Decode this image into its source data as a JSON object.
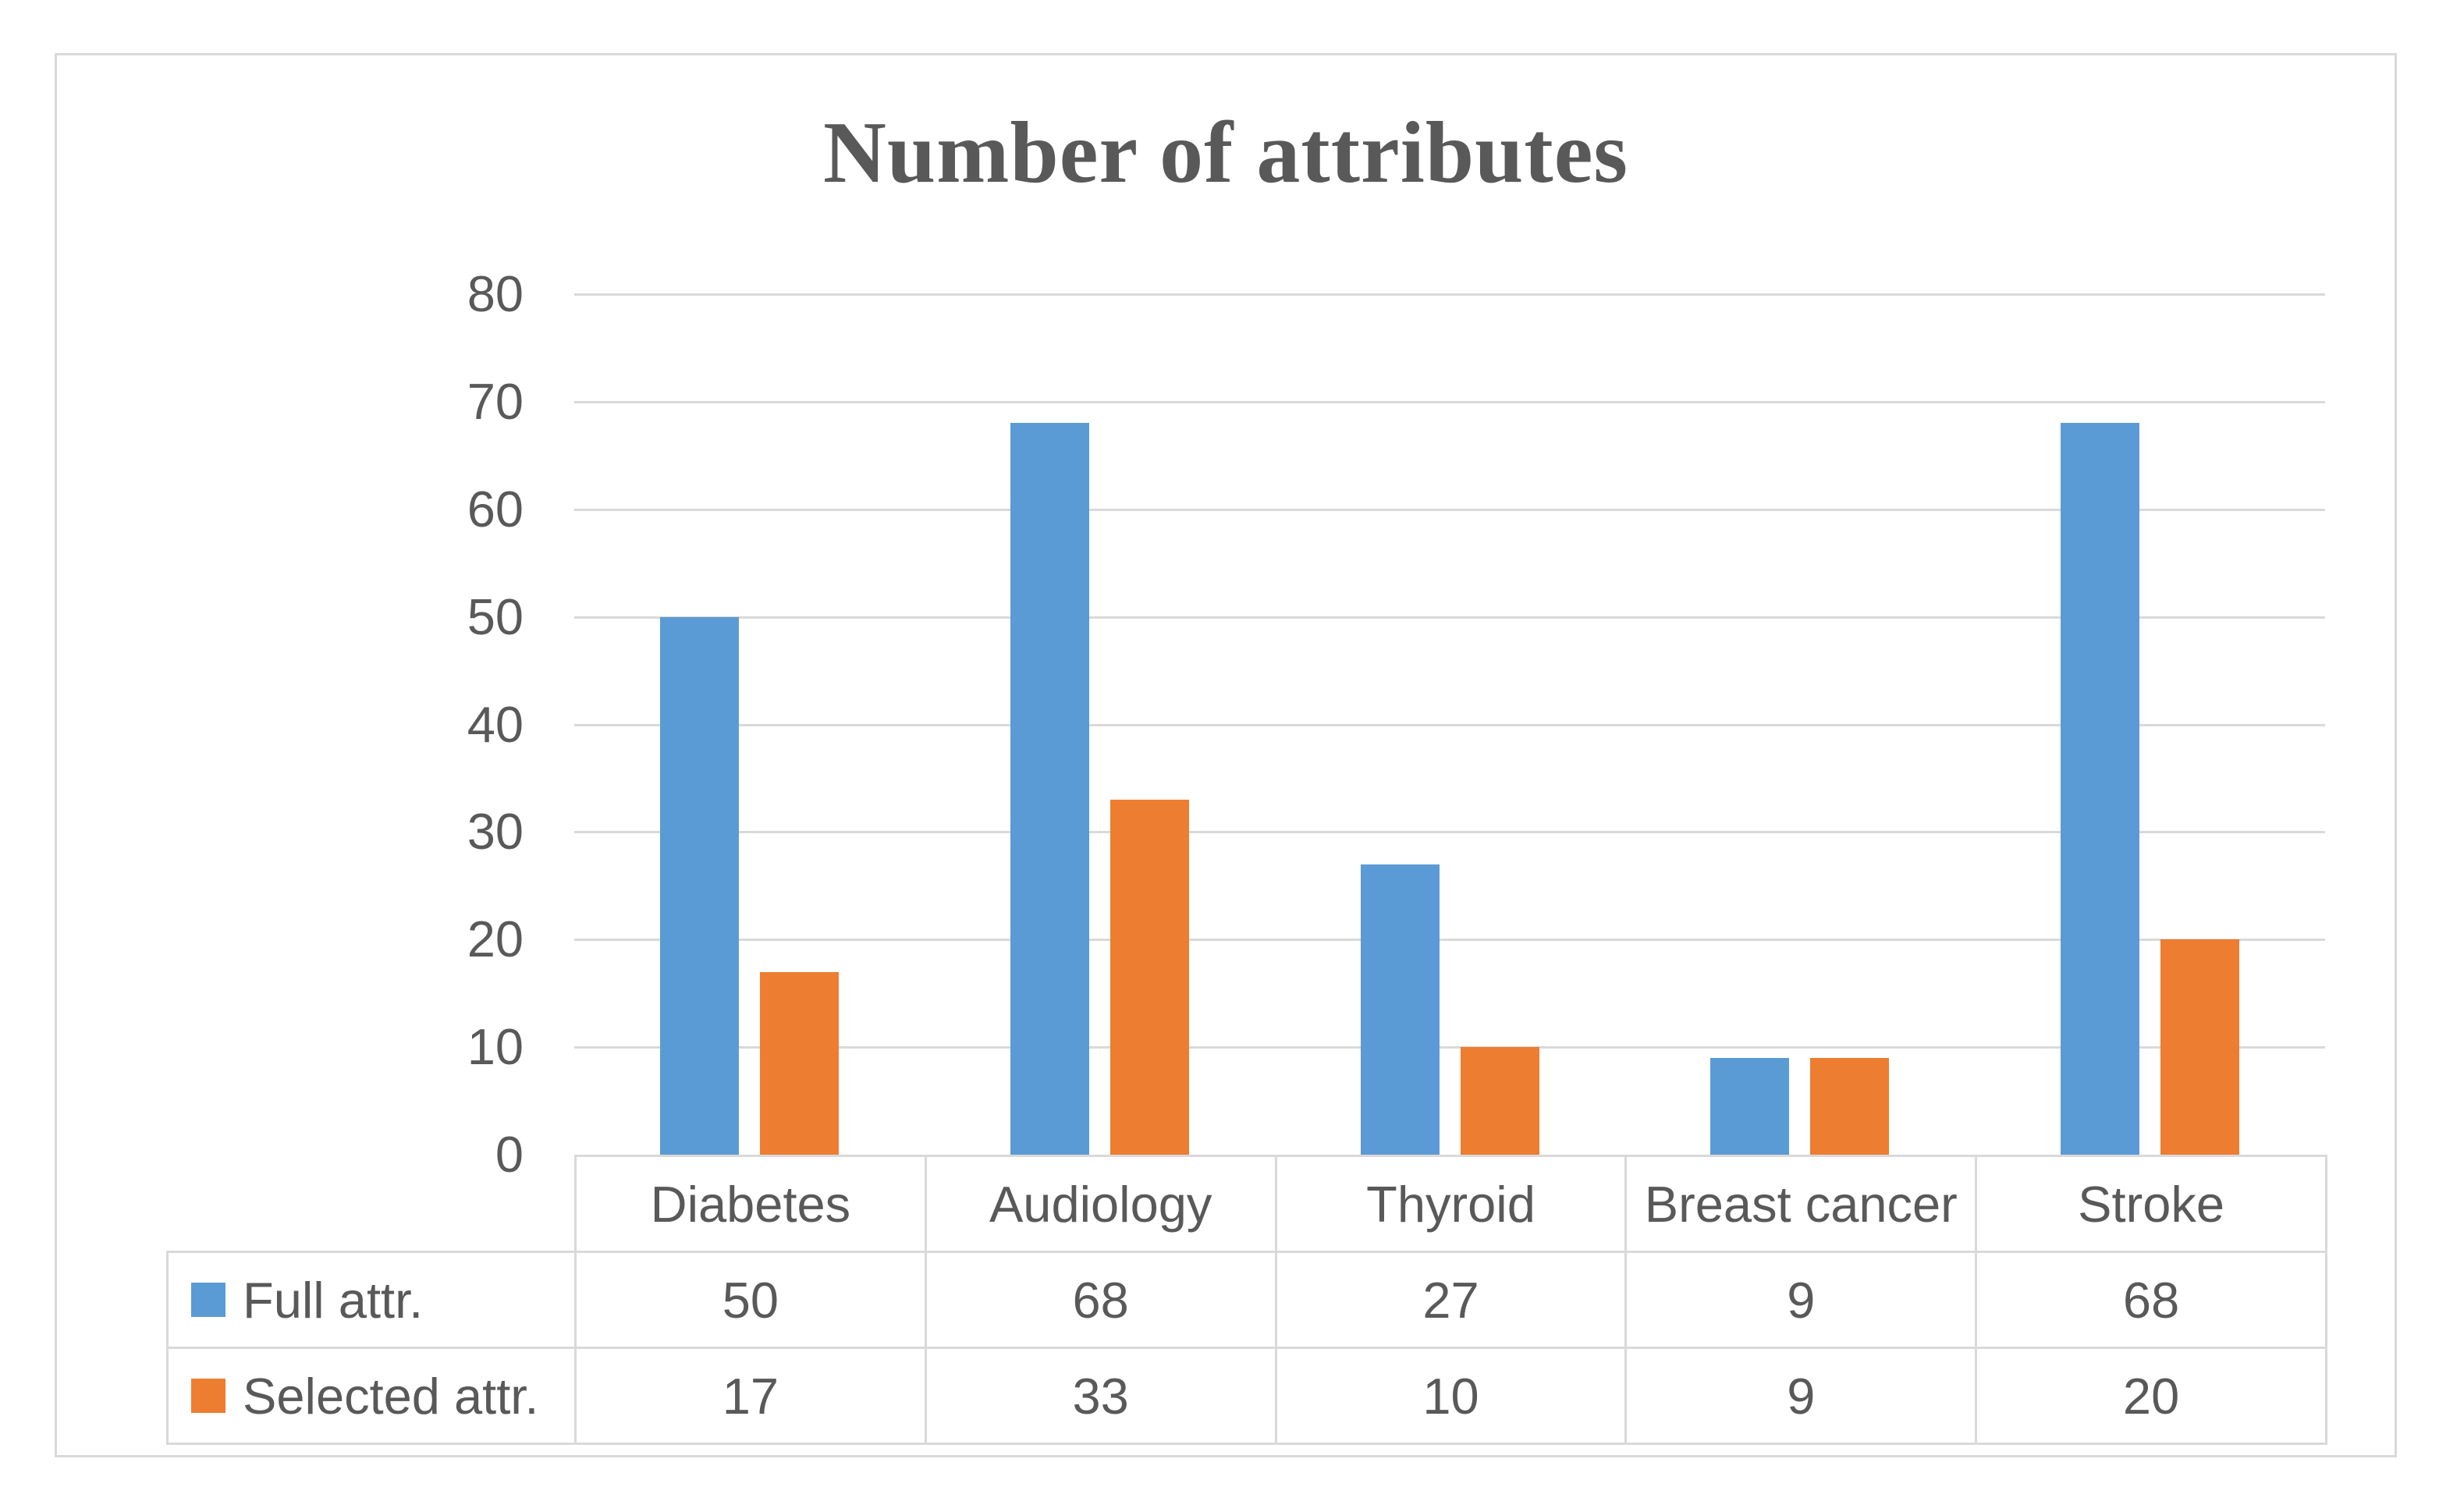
{
  "chart_data": {
    "type": "bar",
    "title": "Number of attributes",
    "categories": [
      "Diabetes",
      "Audiology",
      "Thyroid",
      "Breast cancer",
      "Stroke"
    ],
    "series": [
      {
        "name": "Full attr.",
        "color": "#5b9bd5",
        "values": [
          50,
          68,
          27,
          9,
          68
        ]
      },
      {
        "name": "Selected attr.",
        "color": "#ed7d31",
        "values": [
          17,
          33,
          10,
          9,
          20
        ]
      }
    ],
    "ylim": [
      0,
      80
    ],
    "yticks": [
      80,
      70,
      60,
      50,
      40,
      30,
      20,
      10,
      0
    ],
    "xlabel": "",
    "ylabel": "",
    "grid": true,
    "gridline_color": "#d9d9d9",
    "text_color": "#595959",
    "frame_border_color": "#d9d9d9",
    "background_color": "#ffffff",
    "legend_position": "table-rows-left",
    "data_table_shown": true
  }
}
